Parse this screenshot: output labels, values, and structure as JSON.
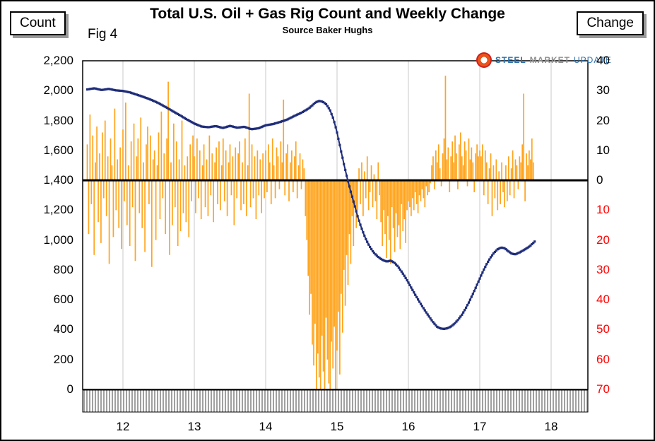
{
  "header": {
    "count_box_label": "Count",
    "change_box_label": "Change",
    "title": "Total U.S. Oil + Gas Rig Count and Weekly Change",
    "subtitle": "Source Baker Hughs",
    "fig_label": "Fig 4"
  },
  "logo": {
    "steel": "STEEL",
    "market": "MARKET",
    "update": "UPDATE"
  },
  "colors": {
    "bar": "#FFA41C",
    "line": "#1F2D7A",
    "negative_tick": "#FF0000",
    "positive_tick": "#000000",
    "gridline": "#c9c9c9",
    "zero_line": "#000000"
  },
  "chart_data": {
    "type": "combo",
    "title": "Total U.S. Oil + Gas Rig Count and Weekly Change",
    "subtitle": "Source Baker Hughs",
    "left_axis": {
      "label": "Count",
      "min": 0,
      "max": 2200,
      "tick_step": 200,
      "ticks": [
        {
          "v": 2200,
          "t": "2,200"
        },
        {
          "v": 2000,
          "t": "2,000"
        },
        {
          "v": 1800,
          "t": "1,800"
        },
        {
          "v": 1600,
          "t": "1,600"
        },
        {
          "v": 1400,
          "t": "1,400"
        },
        {
          "v": 1200,
          "t": "1,200"
        },
        {
          "v": 1000,
          "t": "1,000"
        },
        {
          "v": 800,
          "t": "800"
        },
        {
          "v": 600,
          "t": "600"
        },
        {
          "v": 400,
          "t": "400"
        },
        {
          "v": 200,
          "t": "200"
        },
        {
          "v": 0,
          "t": "0"
        }
      ]
    },
    "right_axis": {
      "label": "Change",
      "min": -70,
      "max": 40,
      "zero_at_left_value": 1400,
      "ticks": [
        {
          "v": 40,
          "t": "40",
          "c": "#000000"
        },
        {
          "v": 30,
          "t": "30",
          "c": "#000000"
        },
        {
          "v": 20,
          "t": "20",
          "c": "#000000"
        },
        {
          "v": 10,
          "t": "10",
          "c": "#000000"
        },
        {
          "v": 0,
          "t": "0",
          "c": "#000000"
        },
        {
          "v": -10,
          "t": "10",
          "c": "#FF0000"
        },
        {
          "v": -20,
          "t": "20",
          "c": "#FF0000"
        },
        {
          "v": -30,
          "t": "30",
          "c": "#FF0000"
        },
        {
          "v": -40,
          "t": "40",
          "c": "#FF0000"
        },
        {
          "v": -50,
          "t": "50",
          "c": "#FF0000"
        },
        {
          "v": -60,
          "t": "60",
          "c": "#FF0000"
        },
        {
          "v": -70,
          "t": "70",
          "c": "#FF0000"
        }
      ]
    },
    "x_axis": {
      "ticks": [
        {
          "v": 12,
          "t": "12"
        },
        {
          "v": 13,
          "t": "13"
        },
        {
          "v": 14,
          "t": "14"
        },
        {
          "v": 15,
          "t": "15"
        },
        {
          "v": 16,
          "t": "16"
        },
        {
          "v": 17,
          "t": "17"
        },
        {
          "v": 18,
          "t": "18"
        }
      ]
    },
    "series": [
      {
        "name": "Total U.S. Oil + Gas Rig Count",
        "type": "line",
        "axis": "left",
        "keypoints": [
          [
            11.5,
            2008
          ],
          [
            11.6,
            2016
          ],
          [
            11.7,
            2004
          ],
          [
            11.8,
            2012
          ],
          [
            11.9,
            2002
          ],
          [
            12.0,
            1998
          ],
          [
            12.1,
            1988
          ],
          [
            12.2,
            1972
          ],
          [
            12.3,
            1956
          ],
          [
            12.4,
            1938
          ],
          [
            12.5,
            1916
          ],
          [
            12.6,
            1890
          ],
          [
            12.7,
            1862
          ],
          [
            12.8,
            1835
          ],
          [
            12.9,
            1806
          ],
          [
            13.0,
            1780
          ],
          [
            13.1,
            1760
          ],
          [
            13.2,
            1755
          ],
          [
            13.3,
            1763
          ],
          [
            13.4,
            1750
          ],
          [
            13.5,
            1764
          ],
          [
            13.6,
            1752
          ],
          [
            13.7,
            1758
          ],
          [
            13.8,
            1742
          ],
          [
            13.9,
            1748
          ],
          [
            14.0,
            1768
          ],
          [
            14.1,
            1776
          ],
          [
            14.2,
            1790
          ],
          [
            14.3,
            1806
          ],
          [
            14.4,
            1830
          ],
          [
            14.5,
            1852
          ],
          [
            14.6,
            1880
          ],
          [
            14.65,
            1900
          ],
          [
            14.7,
            1922
          ],
          [
            14.75,
            1931
          ],
          [
            14.8,
            1926
          ],
          [
            14.85,
            1908
          ],
          [
            14.9,
            1872
          ],
          [
            14.95,
            1810
          ],
          [
            15.0,
            1720
          ],
          [
            15.05,
            1610
          ],
          [
            15.1,
            1500
          ],
          [
            15.15,
            1400
          ],
          [
            15.2,
            1310
          ],
          [
            15.25,
            1225
          ],
          [
            15.3,
            1140
          ],
          [
            15.35,
            1070
          ],
          [
            15.4,
            1010
          ],
          [
            15.45,
            962
          ],
          [
            15.5,
            925
          ],
          [
            15.55,
            898
          ],
          [
            15.6,
            878
          ],
          [
            15.65,
            864
          ],
          [
            15.7,
            856
          ],
          [
            15.75,
            862
          ],
          [
            15.8,
            850
          ],
          [
            15.85,
            825
          ],
          [
            15.9,
            792
          ],
          [
            15.95,
            755
          ],
          [
            16.0,
            715
          ],
          [
            16.05,
            672
          ],
          [
            16.1,
            630
          ],
          [
            16.15,
            590
          ],
          [
            16.2,
            552
          ],
          [
            16.25,
            515
          ],
          [
            16.3,
            480
          ],
          [
            16.35,
            448
          ],
          [
            16.4,
            420
          ],
          [
            16.45,
            408
          ],
          [
            16.5,
            405
          ],
          [
            16.55,
            410
          ],
          [
            16.6,
            422
          ],
          [
            16.65,
            442
          ],
          [
            16.7,
            468
          ],
          [
            16.75,
            500
          ],
          [
            16.8,
            540
          ],
          [
            16.85,
            585
          ],
          [
            16.9,
            635
          ],
          [
            16.95,
            688
          ],
          [
            17.0,
            742
          ],
          [
            17.05,
            795
          ],
          [
            17.1,
            842
          ],
          [
            17.15,
            882
          ],
          [
            17.2,
            915
          ],
          [
            17.25,
            938
          ],
          [
            17.3,
            950
          ],
          [
            17.35,
            945
          ],
          [
            17.4,
            925
          ],
          [
            17.45,
            908
          ],
          [
            17.5,
            905
          ],
          [
            17.55,
            915
          ],
          [
            17.6,
            928
          ],
          [
            17.65,
            942
          ],
          [
            17.7,
            958
          ],
          [
            17.77,
            990
          ]
        ]
      },
      {
        "name": "Weekly Change",
        "type": "bar",
        "axis": "right",
        "x_start": 11.5,
        "x_step_years": 0.0192308,
        "values": [
          12,
          -18,
          22,
          -8,
          15,
          -25,
          6,
          18,
          -14,
          9,
          -21,
          16,
          -6,
          20,
          -12,
          8,
          -28,
          14,
          5,
          -19,
          24,
          -10,
          7,
          -16,
          11,
          -23,
          17,
          -7,
          26,
          -15,
          5,
          -22,
          13,
          -9,
          19,
          -27,
          8,
          14,
          -11,
          21,
          -16,
          6,
          -24,
          12,
          18,
          -8,
          15,
          -29,
          7,
          10,
          -20,
          5,
          16,
          -13,
          23,
          -6,
          9,
          -18,
          14,
          33,
          -25,
          6,
          -15,
          19,
          -9,
          13,
          -22,
          7,
          -17,
          20,
          -11,
          5,
          -14,
          8,
          -19,
          12,
          -7,
          15,
          8,
          -11,
          14,
          -6,
          10,
          -13,
          5,
          12,
          -9,
          7,
          -12,
          15,
          -5,
          9,
          -14,
          6,
          11,
          -8,
          13,
          -10,
          5,
          14,
          -7,
          10,
          -12,
          6,
          12,
          -5,
          8,
          -15,
          11,
          -6,
          9,
          13,
          -10,
          6,
          -8,
          14,
          -12,
          5,
          29,
          -9,
          12,
          -6,
          8,
          -13,
          10,
          -5,
          7,
          -11,
          9,
          -6,
          10,
          -4,
          12,
          6,
          -8,
          14,
          5,
          -6,
          11,
          8,
          -3,
          13,
          6,
          27,
          -5,
          9,
          12,
          -7,
          6,
          10,
          -4,
          8,
          13,
          -6,
          5,
          9,
          -3,
          7,
          4,
          -12,
          -20,
          -32,
          -45,
          -38,
          -55,
          -62,
          -48,
          -70,
          -58,
          -66,
          -70,
          -52,
          -64,
          -70,
          -46,
          -60,
          -68,
          -70,
          -54,
          -63,
          -49,
          -70,
          -57,
          -44,
          -65,
          -38,
          -51,
          -30,
          -42,
          -25,
          -35,
          -18,
          -28,
          -12,
          -22,
          -8,
          -16,
          -10,
          4,
          -8,
          6,
          -12,
          3,
          -6,
          8,
          -10,
          -4,
          5,
          -9,
          2,
          -7,
          -13,
          6,
          -5,
          -14,
          -22,
          -10,
          -18,
          -26,
          -12,
          -20,
          -28,
          -9,
          -16,
          -24,
          -11,
          -19,
          -15,
          -23,
          -8,
          -17,
          -13,
          -21,
          -10,
          -7,
          -9,
          -12,
          -6,
          -10,
          -4,
          -8,
          -11,
          -5,
          -7,
          -3,
          -6,
          -9,
          -2,
          -5,
          -4,
          -1,
          5,
          8,
          -3,
          10,
          6,
          12,
          4,
          -2,
          9,
          14,
          35,
          7,
          11,
          -4,
          8,
          13,
          6,
          15,
          9,
          -3,
          12,
          16,
          8,
          5,
          13,
          10,
          -2,
          14,
          7,
          11,
          6,
          -4,
          9,
          12,
          8,
          10,
          8,
          12,
          -5,
          10,
          6,
          -8,
          4,
          9,
          -12,
          5,
          -6,
          7,
          -10,
          3,
          -8,
          6,
          -4,
          -9,
          5,
          -7,
          8,
          -5,
          4,
          10,
          -6,
          7,
          5,
          -3,
          8,
          6,
          12,
          29,
          -7,
          9,
          5,
          10,
          7,
          14,
          6
        ]
      }
    ],
    "layout_hints": {
      "grid": "vertical-year-lines",
      "zero_line": "heavy-black-at-left-1400",
      "below_zero_band": "gray-vertical-hatch"
    }
  }
}
